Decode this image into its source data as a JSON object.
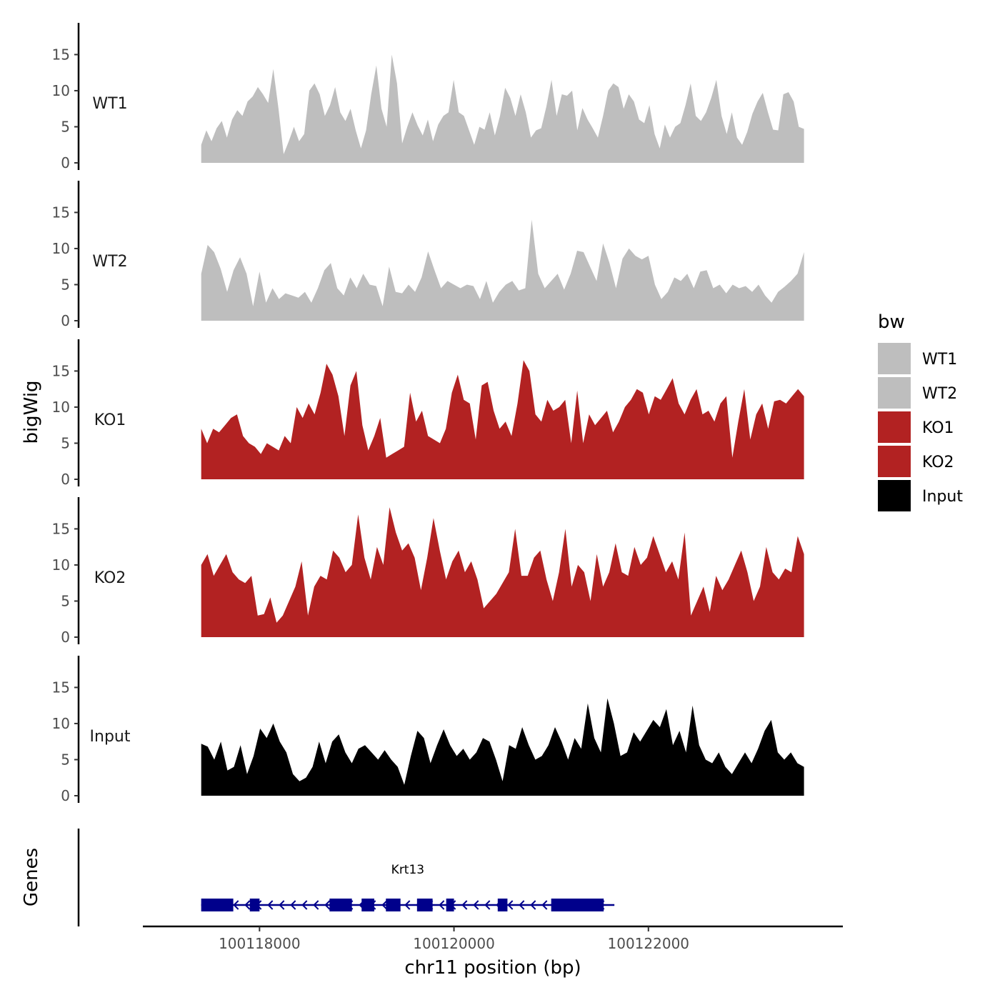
{
  "chart_data": {
    "type": "area",
    "title": "",
    "ylabel": "bigWig",
    "xlabel": "chr11 position (bp)",
    "chromosome": "chr11",
    "xlim": [
      100116800,
      100124000
    ],
    "x_range": [
      100117400,
      100123600
    ],
    "x_ticks": [
      100118000,
      100120000,
      100122000
    ],
    "x_tick_labels": [
      "100118000",
      "100120000",
      "100122000"
    ],
    "ylim": [
      0,
      19
    ],
    "y_ticks": [
      0,
      5,
      10,
      15
    ],
    "y_tick_labels": [
      "0",
      "5",
      "10",
      "15"
    ],
    "legend": {
      "title": "bw",
      "position": "right",
      "entries": [
        {
          "label": "WT1",
          "color": "#bebebe"
        },
        {
          "label": "WT2",
          "color": "#bebebe"
        },
        {
          "label": "KO1",
          "color": "#b22222"
        },
        {
          "label": "KO2",
          "color": "#b22222"
        },
        {
          "label": "Input",
          "color": "#000000"
        }
      ]
    },
    "series": [
      {
        "name": "WT1",
        "color": "#bebebe",
        "values": [
          2.5,
          4.5,
          3,
          4.8,
          5.8,
          3.5,
          6,
          7.3,
          6.5,
          8.5,
          9.2,
          10.5,
          9.5,
          8.3,
          13,
          7.5,
          1.2,
          3,
          5,
          3,
          4,
          10,
          11,
          9.5,
          6.5,
          8,
          10.5,
          7,
          5.8,
          7.5,
          4.5,
          2,
          4.5,
          9.5,
          13.5,
          7.5,
          5,
          15,
          11,
          2.7,
          5,
          7,
          5.2,
          3.8,
          6,
          3,
          5.3,
          6.5,
          7,
          11.5,
          7,
          6.5,
          4.5,
          2.5,
          5,
          4.6,
          7,
          3.8,
          6.5,
          10.4,
          9,
          6.5,
          9.5,
          7,
          3.5,
          4.5,
          4.8,
          7.8,
          11.5,
          6.5,
          9.5,
          9.3,
          10,
          4.5,
          7.6,
          6,
          4.8,
          3.5,
          6.5,
          10,
          11,
          10.5,
          7.5,
          9.5,
          8.5,
          6,
          5.5,
          8,
          4,
          2,
          5.3,
          3.5,
          5,
          5.5,
          8,
          11,
          6.5,
          5.8,
          7,
          9,
          11.5,
          6.5,
          4,
          7,
          3.5,
          2.5,
          4.3,
          6.8,
          8.5,
          9.7,
          7,
          4.6,
          4.5,
          9.5,
          9.8,
          8.5,
          5,
          4.7
        ]
      },
      {
        "name": "WT2",
        "color": "#bebebe",
        "values": [
          6.5,
          10.5,
          9.5,
          7.2,
          4,
          7,
          8.8,
          6.5,
          2,
          6.8,
          2.5,
          4.5,
          3,
          3.8,
          3.5,
          3.2,
          4,
          2.5,
          4.5,
          7,
          8,
          4.5,
          3.5,
          6,
          4.5,
          6.5,
          5,
          4.8,
          2,
          7.5,
          4,
          3.8,
          5,
          4,
          6,
          9.6,
          7,
          4.5,
          5.5,
          5,
          4.5,
          5,
          4.8,
          3,
          5.5,
          2.5,
          4,
          5,
          5.5,
          4.2,
          4.5,
          14,
          6.5,
          4.5,
          5.5,
          6.5,
          4.3,
          6.5,
          9.7,
          9.5,
          7.5,
          5.5,
          10.7,
          8,
          4.5,
          8.6,
          10,
          9,
          8.5,
          9,
          5,
          3,
          4,
          6,
          5.5,
          6.5,
          4.5,
          6.8,
          7,
          4.5,
          5,
          3.8,
          5,
          4.5,
          4.8,
          4,
          5,
          3.5,
          2.5,
          4,
          4.7,
          5.5,
          6.5,
          9.5
        ]
      },
      {
        "name": "KO1",
        "color": "#b22222",
        "values": [
          7,
          5,
          7,
          6.5,
          7.5,
          8.5,
          9,
          6,
          5,
          4.5,
          3.5,
          5,
          4.5,
          4,
          6,
          5,
          10,
          8.5,
          10.5,
          9,
          12,
          16,
          14.5,
          11.5,
          6,
          13,
          15,
          7.5,
          4,
          6,
          8.5,
          3,
          3.5,
          4,
          4.5,
          12,
          8,
          9.5,
          6,
          5.5,
          5,
          7,
          12,
          14.5,
          11,
          10.5,
          5.5,
          13,
          13.5,
          9.5,
          7,
          8,
          6,
          10.5,
          16.5,
          15,
          9,
          8,
          11,
          9.5,
          10,
          11,
          5,
          12.3,
          5,
          9,
          7.5,
          8.5,
          9.5,
          6.5,
          8,
          10,
          11,
          12.5,
          12,
          9,
          11.5,
          11,
          12.5,
          14,
          10.5,
          9,
          11,
          12.5,
          9,
          9.5,
          8,
          10.5,
          11.5,
          3,
          8,
          12.5,
          5.5,
          9,
          10.5,
          7,
          10.8,
          11,
          10.5,
          11.5,
          12.5,
          11.5
        ]
      },
      {
        "name": "KO2",
        "color": "#b22222",
        "values": [
          10,
          11.5,
          8.5,
          10,
          11.5,
          9,
          8,
          7.5,
          8.5,
          3,
          3.2,
          5.5,
          2,
          3,
          5,
          7,
          10.5,
          3,
          7,
          8.5,
          8,
          12,
          11,
          9,
          10,
          17,
          11,
          8,
          12.5,
          10,
          18,
          14.5,
          12,
          13,
          11,
          6.5,
          11,
          16.5,
          12,
          8,
          10.5,
          12,
          9,
          10.5,
          8,
          4,
          5,
          6,
          7.5,
          9,
          15,
          8.5,
          8.5,
          11,
          12,
          8,
          5,
          9,
          15,
          7,
          10,
          9,
          5,
          11.5,
          7,
          9,
          13,
          9,
          8.5,
          12.5,
          10,
          11,
          14,
          11.5,
          9,
          10.5,
          8,
          14.5,
          3,
          5,
          7,
          3.5,
          8.5,
          6.5,
          8,
          10,
          12,
          9,
          5,
          7,
          12.5,
          9,
          8,
          9.5,
          9,
          14,
          11.5
        ]
      },
      {
        "name": "Input",
        "color": "#000000",
        "values": [
          7.2,
          6.8,
          5,
          7.5,
          3.5,
          4,
          7,
          3,
          5.5,
          9.3,
          8,
          10,
          7.5,
          6,
          3,
          2,
          2.5,
          4,
          7.5,
          4.5,
          7.5,
          8.5,
          6,
          4.5,
          6.5,
          7,
          6,
          5,
          6.3,
          5,
          4,
          1.5,
          5.5,
          9,
          8,
          4.5,
          7,
          9.2,
          7,
          5.5,
          6.5,
          5,
          6,
          8,
          7.5,
          5,
          2,
          7,
          6.5,
          9.5,
          7,
          5,
          5.5,
          7,
          9.5,
          7.5,
          5,
          8,
          6.5,
          12.8,
          8,
          6,
          13.5,
          10,
          5.5,
          6,
          8.8,
          7.5,
          9,
          10.5,
          9.5,
          12,
          7,
          9,
          6,
          12.5,
          7,
          5,
          4.5,
          6,
          4,
          3,
          4.5,
          6,
          4.5,
          6.5,
          9,
          10.5,
          6,
          5,
          6,
          4.5,
          4
        ]
      }
    ],
    "genes": [
      {
        "name": "Krt13",
        "start": 100117400,
        "end": 100121650,
        "strand": "-",
        "exons": [
          [
            100117400,
            100117730
          ],
          [
            100117900,
            100118000
          ],
          [
            100118720,
            100118950
          ],
          [
            100119050,
            100119180
          ],
          [
            100119300,
            100119450
          ],
          [
            100119620,
            100119780
          ],
          [
            100119920,
            100120000
          ],
          [
            100120450,
            100120550
          ],
          [
            100121000,
            100121540
          ]
        ]
      }
    ],
    "gene_track_title": "Genes"
  }
}
